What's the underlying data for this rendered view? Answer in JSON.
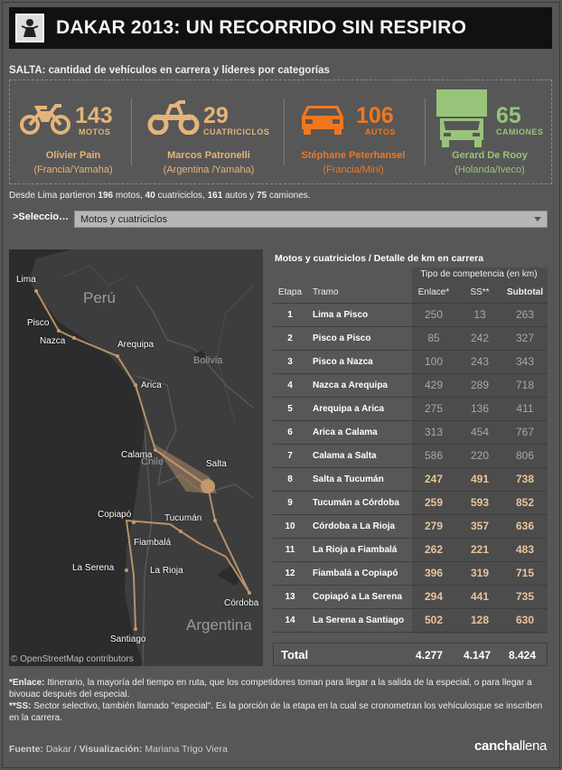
{
  "header": {
    "title": "DAKAR 2013: UN RECORRIDO SIN RESPIRO"
  },
  "subtitle": "SALTA: cantidad de vehículos en carrera y líderes por categorías",
  "categories": [
    {
      "number": "143",
      "unit": "MOTOS",
      "leader": "Olivier Pain",
      "team": "(Francia/Yamaha)",
      "icon": "motorcycle-icon",
      "color": "#e4b47a"
    },
    {
      "number": "29",
      "unit": "CUATRICICLOS",
      "leader": "Marcos Patronelli",
      "team": "(Argentina /Yamaha)",
      "icon": "quad-icon",
      "color": "#e4b47a"
    },
    {
      "number": "106",
      "unit": "AUTOS",
      "leader": "Stéphane Peterhansel",
      "team": "(Francia/Mini)",
      "icon": "car-icon",
      "color": "#f0771e"
    },
    {
      "number": "65",
      "unit": "CAMIONES",
      "leader": "Gerard De Rooy",
      "team": "(Holanda/Iveco)",
      "icon": "truck-icon",
      "color": "#98c47a"
    }
  ],
  "totals": {
    "prefix": "Desde Lima partieron",
    "motos": "196",
    "motos_label": "motos,",
    "cuatri": "40",
    "cuatri_label": "cuatriciclos,",
    "autos": "161",
    "autos_label": "autos y",
    "camiones": "75",
    "camiones_label": "camiones."
  },
  "selector": {
    "label": ">Seleccio…",
    "value": "Motos y cuatriciclos"
  },
  "map": {
    "credit": "© OpenStreetMap contributors",
    "countries": [
      "Perú",
      "Bolivia",
      "Chile",
      "Argentina"
    ],
    "cities": [
      "Lima",
      "Pisco",
      "Nazca",
      "Arequipa",
      "Arica",
      "Calama",
      "Salta",
      "Copiapó",
      "Tucumán",
      "Fiambalá",
      "La Serena",
      "La Rioja",
      "Córdoba",
      "Santiago"
    ]
  },
  "table": {
    "title": "Motos y cuatriciclos / Detalle de km en carrera",
    "group_header": "Tipo de competencia (en km)",
    "headers": {
      "etapa": "Etapa",
      "tramo": "Tramo",
      "enlace": "Enlace*",
      "ss": "SS**",
      "subtotal": "Subtotal"
    },
    "rows": [
      {
        "etapa": "1",
        "tramo": "Lima a Pisco",
        "enlace": "250",
        "ss": "13",
        "subtotal": "263",
        "highlight": false
      },
      {
        "etapa": "2",
        "tramo": "Pisco a Pisco",
        "enlace": "85",
        "ss": "242",
        "subtotal": "327",
        "highlight": false
      },
      {
        "etapa": "3",
        "tramo": "Pisco a Nazca",
        "enlace": "100",
        "ss": "243",
        "subtotal": "343",
        "highlight": false
      },
      {
        "etapa": "4",
        "tramo": "Nazca a Arequipa",
        "enlace": "429",
        "ss": "289",
        "subtotal": "718",
        "highlight": false
      },
      {
        "etapa": "5",
        "tramo": "Arequipa a Arica",
        "enlace": "275",
        "ss": "136",
        "subtotal": "411",
        "highlight": false
      },
      {
        "etapa": "6",
        "tramo": "Arica a Calama",
        "enlace": "313",
        "ss": "454",
        "subtotal": "767",
        "highlight": false
      },
      {
        "etapa": "7",
        "tramo": "Calama a Salta",
        "enlace": "586",
        "ss": "220",
        "subtotal": "806",
        "highlight": false
      },
      {
        "etapa": "8",
        "tramo": "Salta a Tucumán",
        "enlace": "247",
        "ss": "491",
        "subtotal": "738",
        "highlight": true
      },
      {
        "etapa": "9",
        "tramo": "Tucumán a Córdoba",
        "enlace": "259",
        "ss": "593",
        "subtotal": "852",
        "highlight": true
      },
      {
        "etapa": "10",
        "tramo": "Córdoba a La Rioja",
        "enlace": "279",
        "ss": "357",
        "subtotal": "636",
        "highlight": true
      },
      {
        "etapa": "11",
        "tramo": "La Rioja a Fiambalá",
        "enlace": "262",
        "ss": "221",
        "subtotal": "483",
        "highlight": true
      },
      {
        "etapa": "12",
        "tramo": "Fiambalá a Copiapó",
        "enlace": "396",
        "ss": "319",
        "subtotal": "715",
        "highlight": true
      },
      {
        "etapa": "13",
        "tramo": "Copiapó a La Serena",
        "enlace": "294",
        "ss": "441",
        "subtotal": "735",
        "highlight": true
      },
      {
        "etapa": "14",
        "tramo": "La Serena a Santiago",
        "enlace": "502",
        "ss": "128",
        "subtotal": "630",
        "highlight": true
      }
    ],
    "total": {
      "label": "Total",
      "enlace": "4.277",
      "ss": "4.147",
      "subtotal": "8.424"
    }
  },
  "notes": {
    "enlace_term": "*Enlace:",
    "enlace_text": " Itinerario, la mayoría del tiempo en ruta, que los competidores toman para llegar a la salida de la especial, o para llegar a bivouac después del especial.",
    "ss_term": "**SS:",
    "ss_text": " Sector selectivo, también llamado \"especial\". Es la porción de la etapa en la cual se cronometran los vehículosque se inscriben en la carrera."
  },
  "footer": {
    "source_label": "Fuente:",
    "source": " Dakar / ",
    "viz_label": "Visualización:",
    "viz": " Mariana Trigo Viera",
    "brand_a": "cancha",
    "brand_b": "llena"
  }
}
